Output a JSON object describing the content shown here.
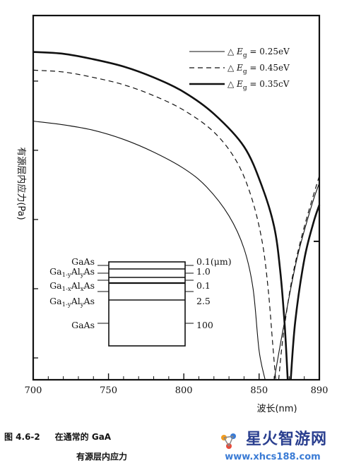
{
  "chart_data": {
    "type": "line",
    "title": "",
    "xlabel": "波长(nm)",
    "ylabel": "有源层内应力(Pa)",
    "xlim": [
      700,
      890
    ],
    "x_ticks": [
      "700",
      "750",
      "800",
      "850",
      "890"
    ],
    "x_tick_values": [
      700,
      750,
      800,
      850,
      890
    ],
    "grid": false,
    "legend_position": "top-right",
    "series": [
      {
        "name": "△E_g = 0.25eV",
        "style": "solid",
        "points": [
          [
            700,
            0.71
          ],
          [
            720,
            0.7
          ],
          [
            740,
            0.685
          ],
          [
            760,
            0.66
          ],
          [
            780,
            0.625
          ],
          [
            800,
            0.58
          ],
          [
            815,
            0.53
          ],
          [
            830,
            0.45
          ],
          [
            840,
            0.36
          ],
          [
            846,
            0.25
          ],
          [
            850,
            0.08
          ],
          [
            854,
            0.0
          ]
        ],
        "return": [
          [
            860,
            0.0
          ],
          [
            866,
            0.14
          ],
          [
            875,
            0.33
          ],
          [
            885,
            0.48
          ],
          [
            890,
            0.54
          ]
        ]
      },
      {
        "name": "△E_g = 0.45eV",
        "style": "dashed",
        "points": [
          [
            700,
            0.85
          ],
          [
            720,
            0.845
          ],
          [
            740,
            0.83
          ],
          [
            760,
            0.81
          ],
          [
            780,
            0.78
          ],
          [
            800,
            0.74
          ],
          [
            820,
            0.68
          ],
          [
            835,
            0.6
          ],
          [
            845,
            0.5
          ],
          [
            852,
            0.38
          ],
          [
            856,
            0.25
          ],
          [
            859,
            0.1
          ],
          [
            861,
            0.0
          ]
        ],
        "return": [
          [
            863,
            0.0
          ],
          [
            866,
            0.12
          ],
          [
            872,
            0.28
          ],
          [
            880,
            0.42
          ],
          [
            890,
            0.56
          ]
        ]
      },
      {
        "name": "△E_g = 0.35eV",
        "style": "solid-bold",
        "points": [
          [
            700,
            0.9
          ],
          [
            720,
            0.895
          ],
          [
            740,
            0.88
          ],
          [
            760,
            0.86
          ],
          [
            780,
            0.83
          ],
          [
            800,
            0.79
          ],
          [
            820,
            0.73
          ],
          [
            840,
            0.64
          ],
          [
            852,
            0.53
          ],
          [
            860,
            0.42
          ],
          [
            864,
            0.3
          ],
          [
            867,
            0.15
          ],
          [
            869,
            0.0
          ]
        ],
        "return": [
          [
            871,
            0.0
          ],
          [
            874,
            0.16
          ],
          [
            880,
            0.33
          ],
          [
            886,
            0.43
          ],
          [
            890,
            0.48
          ]
        ]
      }
    ],
    "legend": [
      {
        "delta": "△",
        "symbol": "E",
        "sub": "g",
        "value": "= 0.25eV",
        "style": "solid"
      },
      {
        "delta": "△",
        "symbol": "E",
        "sub": "g",
        "value": "= 0.45eV",
        "style": "dashed"
      },
      {
        "delta": "△",
        "symbol": "E",
        "sub": "g",
        "value": "= 0.35cV",
        "style": "solid-bold"
      }
    ],
    "inset_layers": [
      {
        "label": "GaAs",
        "thickness": "0.1(μm)"
      },
      {
        "label": "Ga1-yAlyAs",
        "label_main": "Ga",
        "label_sub1": "1-y",
        "label_mid": "Al",
        "label_sub2": "y",
        "label_end": "As",
        "thickness": "1.0"
      },
      {
        "label": "Ga1-xAlxAs",
        "label_main": "Ga",
        "label_sub1": "1-x",
        "label_mid": "Al",
        "label_sub2": "x",
        "label_end": "As",
        "thickness": "0.1"
      },
      {
        "label": "Ga1-yAlyAs",
        "label_main": "Ga",
        "label_sub1": "1-y",
        "label_mid": "Al",
        "label_sub2": "y",
        "label_end": "As",
        "thickness": "2.5"
      },
      {
        "label": "GaAs",
        "thickness": "100"
      }
    ]
  },
  "caption": {
    "number": "图 4.6-2",
    "line1": "在通常的 GaA",
    "line2": "有源层内应力"
  },
  "watermark": {
    "main": "星火智游网",
    "sub": "www.xhcs188.com"
  }
}
